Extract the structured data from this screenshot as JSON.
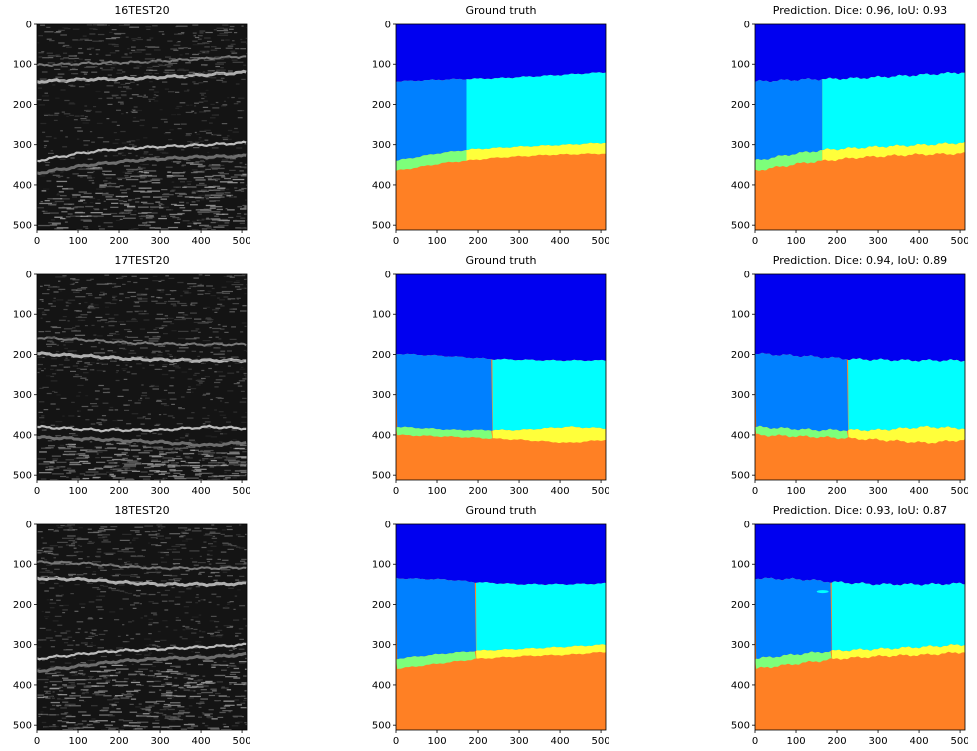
{
  "figure": {
    "panels": [
      {
        "id": "p1",
        "kind": "us",
        "title": "16TEST20",
        "variant": 1
      },
      {
        "id": "p2",
        "kind": "seg",
        "title": "Ground truth",
        "variant": 1,
        "pred": false
      },
      {
        "id": "p3",
        "kind": "seg",
        "title": "Prediction. Dice: 0.96, IoU: 0.93",
        "variant": 1,
        "pred": true
      },
      {
        "id": "p4",
        "kind": "us",
        "title": "17TEST20",
        "variant": 2
      },
      {
        "id": "p5",
        "kind": "seg",
        "title": "Ground truth",
        "variant": 2,
        "pred": false
      },
      {
        "id": "p6",
        "kind": "seg",
        "title": "Prediction. Dice: 0.94, IoU: 0.89",
        "variant": 2,
        "pred": true
      },
      {
        "id": "p7",
        "kind": "us",
        "title": "18TEST20",
        "variant": 3
      },
      {
        "id": "p8",
        "kind": "seg",
        "title": "Ground truth",
        "variant": 3,
        "pred": false
      },
      {
        "id": "p9",
        "kind": "seg",
        "title": "Prediction. Dice: 0.93, IoU: 0.87",
        "variant": 3,
        "pred": true
      }
    ],
    "axis": {
      "x_ticks": [
        "0",
        "100",
        "200",
        "300",
        "400",
        "500"
      ],
      "y_ticks": [
        "0",
        "100",
        "200",
        "300",
        "400",
        "500"
      ],
      "range": [
        0,
        512
      ]
    },
    "colors": {
      "class1": "#0000f0",
      "class2": "#0080ff",
      "class3": "#00ffff",
      "class4": "#7dff7a",
      "class5": "#ffff3a",
      "class6": "#ff8024"
    }
  }
}
